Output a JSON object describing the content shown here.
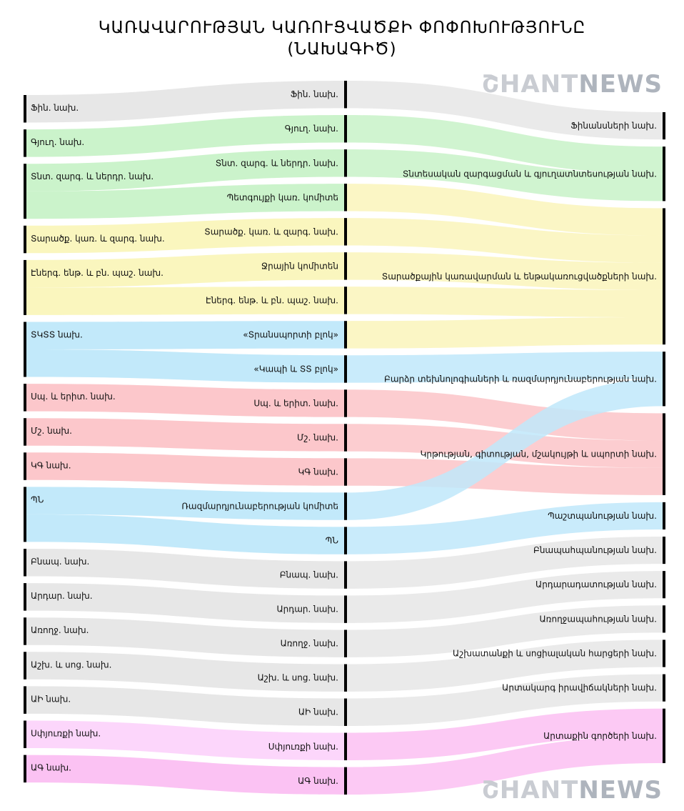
{
  "title": {
    "line1": "ԿԱՌԱՎԱՐՈՒԹՅԱՆ ԿԱՌՈՒՑՎԱԾՔԻ ՓՈՓՈԽՈՒԹՅՈՒՆԸ",
    "line2": "(ՆԱԽԱԳԻԾ)"
  },
  "watermark": {
    "part1": "ՇHANT",
    "part2": "NEWS"
  },
  "colors": {
    "grey": "#e6e6e6",
    "green": "#c8f2c8",
    "yellow": "#faf5bb",
    "blue": "#bfe8fa",
    "pink": "#fcc4c8",
    "lightpurple": "#fcd4fb",
    "magenta": "#fbbff2",
    "node": "#000000"
  },
  "chart_data": {
    "type": "sankey",
    "left_nodes": [
      {
        "label": "Ֆին. նախ.",
        "color": "grey"
      },
      {
        "label": "Գյուղ. նախ.",
        "color": "green"
      },
      {
        "label": "Տնտ. զարգ. և ներդր. նախ.",
        "color": "green"
      },
      {
        "label": "Տարածք. կառ. և զարգ. նախ.",
        "color": "yellow"
      },
      {
        "label": "Էներգ. ենթ. և բն. պաշ. նախ.",
        "color": "yellow"
      },
      {
        "label": "ՏԿՏՏ նախ.",
        "color": "blue"
      },
      {
        "label": "Սպ. և երիտ. նախ.",
        "color": "pink"
      },
      {
        "label": "Մշ. նախ.",
        "color": "pink"
      },
      {
        "label": "ԿԳ նախ.",
        "color": "pink"
      },
      {
        "label": "ՊՆ",
        "color": "blue"
      },
      {
        "label": "Բնապ. նախ.",
        "color": "grey"
      },
      {
        "label": "Արդար. նախ.",
        "color": "grey"
      },
      {
        "label": "Առողջ. նախ.",
        "color": "grey"
      },
      {
        "label": "Աշխ. և սոց. նախ.",
        "color": "grey"
      },
      {
        "label": "ԱԻ նախ.",
        "color": "grey"
      },
      {
        "label": "Սփյուռքի նախ.",
        "color": "lightpurple"
      },
      {
        "label": "ԱԳ նախ.",
        "color": "magenta"
      }
    ],
    "middle_nodes": [
      {
        "label": "Ֆին. նախ.",
        "from": 0,
        "to": 0,
        "color": "grey"
      },
      {
        "label": "Գյուղ. նախ.",
        "from": 1,
        "to": 1,
        "color": "green"
      },
      {
        "label": "Տնտ. զարգ. և ներդր. նախ.",
        "from": 2,
        "to": 1,
        "color": "green"
      },
      {
        "label": "Պետգույքի կառ. կոմիտե",
        "from": 2,
        "to": 2,
        "color": "yellow"
      },
      {
        "label": "Տարածք. կառ. և զարգ. նախ.",
        "from": 3,
        "to": 2,
        "color": "yellow"
      },
      {
        "label": "Ջրային կոմիտեն",
        "from": 4,
        "to": 2,
        "color": "yellow"
      },
      {
        "label": "Էներգ. ենթ. և բն. պաշ. նախ.",
        "from": 4,
        "to": 2,
        "color": "yellow"
      },
      {
        "label": "«Տրանսպորտի բլոկ»",
        "from": 5,
        "to": 2,
        "color": "yellow"
      },
      {
        "label": "«Կապի և ՏՏ բլոկ»",
        "from": 5,
        "to": 3,
        "color": "blue"
      },
      {
        "label": "Սպ. և երիտ. նախ.",
        "from": 6,
        "to": 4,
        "color": "pink"
      },
      {
        "label": "Մշ. նախ.",
        "from": 7,
        "to": 4,
        "color": "pink"
      },
      {
        "label": "ԿԳ նախ.",
        "from": 8,
        "to": 4,
        "color": "pink"
      },
      {
        "label": "Ռազմարդյունաբերության կոմիտե",
        "from": 9,
        "to": 3,
        "color": "blue"
      },
      {
        "label": "ՊՆ",
        "from": 9,
        "to": 5,
        "color": "blue"
      },
      {
        "label": "Բնապ. նախ.",
        "from": 10,
        "to": 6,
        "color": "grey"
      },
      {
        "label": "Արդար. նախ.",
        "from": 11,
        "to": 7,
        "color": "grey"
      },
      {
        "label": "Առողջ. նախ.",
        "from": 12,
        "to": 8,
        "color": "grey"
      },
      {
        "label": "Աշխ. և սոց. նախ.",
        "from": 13,
        "to": 9,
        "color": "grey"
      },
      {
        "label": "ԱԻ նախ.",
        "from": 14,
        "to": 10,
        "color": "grey"
      },
      {
        "label": "Սփյուռքի նախ.",
        "from": 15,
        "to": 11,
        "color": "magenta"
      },
      {
        "label": "ԱԳ նախ.",
        "from": 16,
        "to": 11,
        "color": "magenta"
      }
    ],
    "right_nodes": [
      {
        "label": "Ֆինանսների նախ."
      },
      {
        "label": "Տնտեսական զարգացման և գյուղատնտեսության նախ."
      },
      {
        "label": "Տարածքային կառավարման և ենթակառուցվածքների նախ."
      },
      {
        "label": "Բարձր տեխնոլոգիաների և ռազմարդյունաբերության նախ."
      },
      {
        "label": "Կրթության, գիտության, մշակույթի և սպորտի նախ."
      },
      {
        "label": "Պաշտպանության նախ."
      },
      {
        "label": "Բնապահպանության նախ."
      },
      {
        "label": "Արդարադատության նախ."
      },
      {
        "label": "Առողջապահության նախ."
      },
      {
        "label": "Աշխատանքի և սոցիալական հարցերի նախ."
      },
      {
        "label": "Արտակարգ իրավիճակների նախ."
      },
      {
        "label": "Արտաքին գործերի նախ."
      }
    ]
  }
}
